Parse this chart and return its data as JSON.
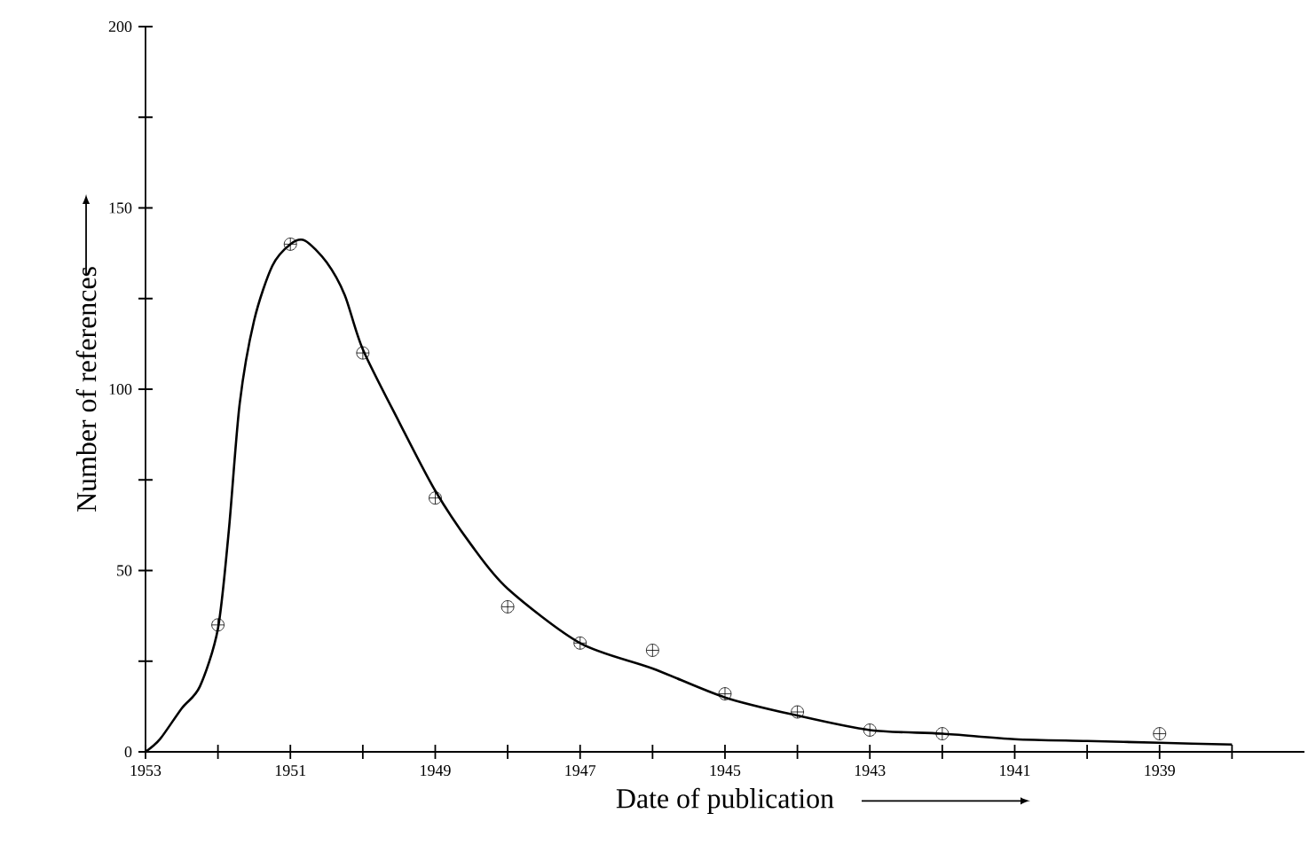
{
  "chart_data": {
    "type": "scatter",
    "xlabel": "Date of publication",
    "ylabel": "Number of references",
    "xlim": [
      1953,
      1937
    ],
    "xticks": [
      1953,
      {
        "value": 1952,
        "label": null
      },
      1951,
      {
        "value": 1950,
        "label": null
      },
      1949,
      {
        "value": 1948,
        "label": null
      },
      1947,
      {
        "value": 1946,
        "label": null
      },
      1945,
      {
        "value": 1944,
        "label": null
      },
      1943,
      {
        "value": 1942,
        "label": null
      },
      1941,
      {
        "value": 1940,
        "label": null
      },
      1939,
      {
        "value": 1938,
        "label": null
      }
    ],
    "ylim": [
      0,
      200
    ],
    "yticks": [
      0,
      {
        "value": 25,
        "label": null
      },
      50,
      {
        "value": 75,
        "label": null
      },
      100,
      {
        "value": 125,
        "label": null
      },
      150,
      {
        "value": 175,
        "label": null
      },
      200
    ],
    "series": [
      {
        "marker": "cross",
        "color": "#000000",
        "x": [
          1952,
          1951,
          1950,
          1949,
          1948,
          1947,
          1946,
          1945,
          1944,
          1943,
          1942,
          1939
        ],
        "values": [
          35,
          140,
          110,
          70,
          40,
          30,
          28,
          16,
          11,
          6,
          5,
          5
        ]
      },
      {
        "type": "line",
        "marker": "none",
        "color": "#000000",
        "x": [
          1953,
          1952.8,
          1952.5,
          1952.25,
          1952,
          1951.85,
          1951.7,
          1951.5,
          1951.25,
          1951,
          1950.8,
          1950.5,
          1950.25,
          1950,
          1949.5,
          1949,
          1948.5,
          1948,
          1947,
          1946,
          1945,
          1944,
          1943,
          1942,
          1941,
          1940,
          1939,
          1938
        ],
        "values": [
          0,
          3.5,
          12,
          18,
          34,
          61,
          96,
          119,
          134,
          140,
          141,
          135,
          126,
          111,
          91,
          72,
          57,
          45,
          30,
          23,
          15,
          10,
          6,
          5,
          3.5,
          3,
          2.5,
          2
        ]
      }
    ]
  }
}
